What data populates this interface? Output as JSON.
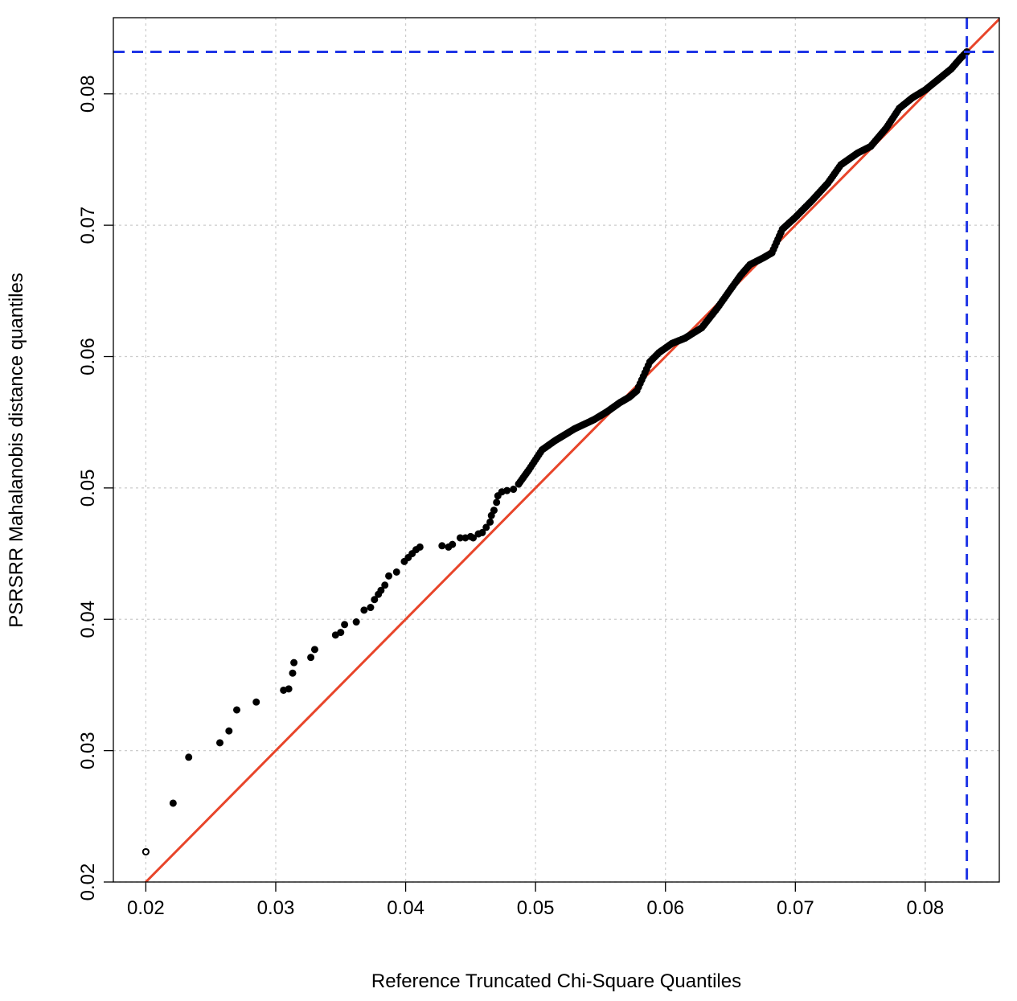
{
  "chart_data": {
    "type": "scatter",
    "title": "",
    "xlabel": "Reference Truncated Chi-Square Quantiles",
    "ylabel": "PSRSRR Mahalanobis distance quantiles",
    "xlim": [
      0.0175,
      0.0857
    ],
    "ylim": [
      0.02,
      0.0858
    ],
    "x_ticks": [
      0.02,
      0.03,
      0.04,
      0.05,
      0.06,
      0.07,
      0.08
    ],
    "x_tick_labels": [
      "0.02",
      "0.03",
      "0.04",
      "0.05",
      "0.06",
      "0.07",
      "0.08"
    ],
    "y_ticks": [
      0.02,
      0.03,
      0.04,
      0.05,
      0.06,
      0.07,
      0.08
    ],
    "y_tick_labels": [
      "0.02",
      "0.03",
      "0.04",
      "0.05",
      "0.06",
      "0.07",
      "0.08"
    ],
    "grid": true,
    "legend": "none",
    "colors": {
      "points": "#000000",
      "reference_line": "#e8452a",
      "cutoff_lines": "#1f35e6",
      "grid": "#cccccc"
    },
    "reference_line": {
      "slope": 1,
      "intercept": 0
    },
    "cutoff": {
      "x": 0.0832,
      "y": 0.0832
    },
    "sparse_points": [
      [
        0.02,
        0.0223
      ],
      [
        0.0221,
        0.026
      ],
      [
        0.0233,
        0.0295
      ],
      [
        0.0257,
        0.0306
      ],
      [
        0.0264,
        0.0315
      ],
      [
        0.027,
        0.0331
      ],
      [
        0.0285,
        0.0337
      ],
      [
        0.0306,
        0.0346
      ],
      [
        0.031,
        0.0347
      ],
      [
        0.0313,
        0.0359
      ],
      [
        0.0314,
        0.0367
      ],
      [
        0.0327,
        0.0371
      ],
      [
        0.033,
        0.0377
      ],
      [
        0.0346,
        0.0388
      ],
      [
        0.035,
        0.039
      ],
      [
        0.0353,
        0.0396
      ],
      [
        0.0362,
        0.0398
      ],
      [
        0.0368,
        0.0407
      ],
      [
        0.0373,
        0.0409
      ],
      [
        0.0376,
        0.0415
      ],
      [
        0.0379,
        0.0419
      ],
      [
        0.0381,
        0.0422
      ],
      [
        0.0384,
        0.0426
      ],
      [
        0.0387,
        0.0433
      ],
      [
        0.0393,
        0.0436
      ],
      [
        0.0399,
        0.0444
      ],
      [
        0.0402,
        0.0447
      ],
      [
        0.0405,
        0.045
      ],
      [
        0.0408,
        0.0453
      ],
      [
        0.0411,
        0.0455
      ],
      [
        0.0428,
        0.0456
      ],
      [
        0.0433,
        0.0455
      ],
      [
        0.0436,
        0.0457
      ],
      [
        0.0442,
        0.0462
      ],
      [
        0.0446,
        0.0462
      ],
      [
        0.045,
        0.0463
      ],
      [
        0.0452,
        0.0462
      ],
      [
        0.0456,
        0.0465
      ],
      [
        0.0459,
        0.0466
      ],
      [
        0.0462,
        0.047
      ],
      [
        0.0465,
        0.0474
      ],
      [
        0.0466,
        0.0479
      ],
      [
        0.0468,
        0.0483
      ],
      [
        0.047,
        0.0489
      ],
      [
        0.0471,
        0.0494
      ],
      [
        0.0474,
        0.0497
      ],
      [
        0.0478,
        0.0498
      ],
      [
        0.0483,
        0.0499
      ],
      [
        0.0487,
        0.0503
      ]
    ],
    "dense_path": [
      [
        0.0487,
        0.0503
      ],
      [
        0.0495,
        0.0514
      ],
      [
        0.0505,
        0.0529
      ],
      [
        0.0515,
        0.0536
      ],
      [
        0.053,
        0.0545
      ],
      [
        0.0545,
        0.0552
      ],
      [
        0.0555,
        0.0558
      ],
      [
        0.0565,
        0.0565
      ],
      [
        0.0572,
        0.0569
      ],
      [
        0.0578,
        0.0574
      ],
      [
        0.0583,
        0.0585
      ],
      [
        0.0588,
        0.0596
      ],
      [
        0.0595,
        0.0603
      ],
      [
        0.0605,
        0.061
      ],
      [
        0.0615,
        0.0614
      ],
      [
        0.0628,
        0.0622
      ],
      [
        0.064,
        0.0637
      ],
      [
        0.065,
        0.0651
      ],
      [
        0.0658,
        0.0662
      ],
      [
        0.0665,
        0.067
      ],
      [
        0.0675,
        0.0675
      ],
      [
        0.0682,
        0.0679
      ],
      [
        0.069,
        0.0697
      ],
      [
        0.07,
        0.0706
      ],
      [
        0.0713,
        0.0719
      ],
      [
        0.0725,
        0.0732
      ],
      [
        0.0735,
        0.0746
      ],
      [
        0.0748,
        0.0755
      ],
      [
        0.0758,
        0.076
      ],
      [
        0.077,
        0.0774
      ],
      [
        0.078,
        0.0789
      ],
      [
        0.079,
        0.0797
      ],
      [
        0.08,
        0.0803
      ],
      [
        0.081,
        0.0811
      ],
      [
        0.082,
        0.0819
      ],
      [
        0.0827,
        0.0827
      ],
      [
        0.0832,
        0.0832
      ]
    ]
  }
}
